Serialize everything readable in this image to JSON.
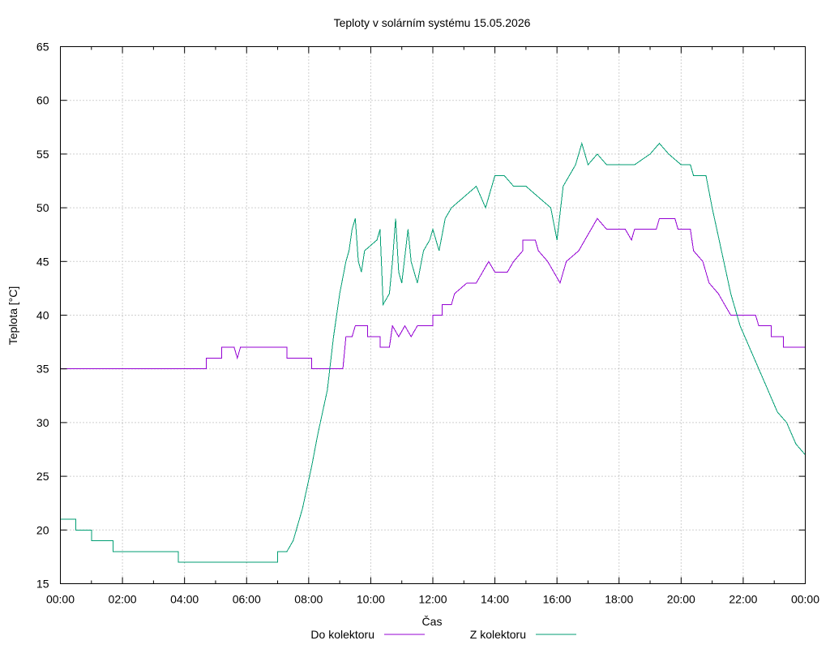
{
  "chart_data": {
    "type": "line",
    "title": "Teploty v solárním systému 15.05.2026",
    "xlabel": "Čas",
    "ylabel": "Teplota [°C]",
    "xlim": [
      0,
      24
    ],
    "ylim": [
      15,
      65
    ],
    "x_ticks": [
      "00:00",
      "02:00",
      "04:00",
      "06:00",
      "08:00",
      "10:00",
      "12:00",
      "14:00",
      "16:00",
      "18:00",
      "20:00",
      "22:00",
      "00:00"
    ],
    "y_ticks": [
      15,
      20,
      25,
      30,
      35,
      40,
      45,
      50,
      55,
      60,
      65
    ],
    "grid": true,
    "legend_position": "bottom",
    "series": [
      {
        "name": "Do kolektoru",
        "color": "#9400d3",
        "points": [
          [
            0,
            35
          ],
          [
            4.7,
            35
          ],
          [
            4.7,
            36
          ],
          [
            5.2,
            36
          ],
          [
            5.2,
            37
          ],
          [
            5.6,
            37
          ],
          [
            5.7,
            36
          ],
          [
            5.8,
            37
          ],
          [
            7.3,
            37
          ],
          [
            7.3,
            36
          ],
          [
            8.1,
            36
          ],
          [
            8.1,
            35
          ],
          [
            9.1,
            35
          ],
          [
            9.2,
            38
          ],
          [
            9.4,
            38
          ],
          [
            9.5,
            39
          ],
          [
            9.9,
            39
          ],
          [
            9.9,
            38
          ],
          [
            10.3,
            38
          ],
          [
            10.3,
            37
          ],
          [
            10.6,
            37
          ],
          [
            10.7,
            39
          ],
          [
            10.9,
            38
          ],
          [
            11.1,
            39
          ],
          [
            11.3,
            38
          ],
          [
            11.5,
            39
          ],
          [
            12.0,
            39
          ],
          [
            12.0,
            40
          ],
          [
            12.3,
            40
          ],
          [
            12.3,
            41
          ],
          [
            12.6,
            41
          ],
          [
            12.7,
            42
          ],
          [
            13.1,
            43
          ],
          [
            13.4,
            43
          ],
          [
            13.6,
            44
          ],
          [
            13.8,
            45
          ],
          [
            14.0,
            44
          ],
          [
            14.4,
            44
          ],
          [
            14.6,
            45
          ],
          [
            14.9,
            46
          ],
          [
            14.9,
            47
          ],
          [
            15.3,
            47
          ],
          [
            15.4,
            46
          ],
          [
            15.7,
            45
          ],
          [
            15.9,
            44
          ],
          [
            16.1,
            43
          ],
          [
            16.2,
            44
          ],
          [
            16.3,
            45
          ],
          [
            16.7,
            46
          ],
          [
            16.9,
            47
          ],
          [
            17.1,
            48
          ],
          [
            17.3,
            49
          ],
          [
            17.6,
            48
          ],
          [
            18.2,
            48
          ],
          [
            18.4,
            47
          ],
          [
            18.5,
            48
          ],
          [
            19.2,
            48
          ],
          [
            19.3,
            49
          ],
          [
            19.8,
            49
          ],
          [
            19.9,
            48
          ],
          [
            20.3,
            48
          ],
          [
            20.4,
            46
          ],
          [
            20.7,
            45
          ],
          [
            20.9,
            43
          ],
          [
            21.2,
            42
          ],
          [
            21.4,
            41
          ],
          [
            21.6,
            40
          ],
          [
            22.4,
            40
          ],
          [
            22.5,
            39
          ],
          [
            22.9,
            39
          ],
          [
            22.9,
            38
          ],
          [
            23.3,
            38
          ],
          [
            23.3,
            37
          ],
          [
            24,
            37
          ]
        ]
      },
      {
        "name": "Z kolektoru",
        "color": "#009e73",
        "points": [
          [
            0,
            21
          ],
          [
            0.5,
            21
          ],
          [
            0.5,
            20
          ],
          [
            1.0,
            20
          ],
          [
            1.0,
            19
          ],
          [
            1.7,
            19
          ],
          [
            1.7,
            18
          ],
          [
            3.8,
            18
          ],
          [
            3.8,
            17
          ],
          [
            7.0,
            17
          ],
          [
            7.0,
            18
          ],
          [
            7.3,
            18
          ],
          [
            7.5,
            19
          ],
          [
            7.8,
            22
          ],
          [
            8.1,
            26
          ],
          [
            8.3,
            29
          ],
          [
            8.6,
            33
          ],
          [
            8.8,
            38
          ],
          [
            9.0,
            42
          ],
          [
            9.2,
            45
          ],
          [
            9.3,
            46
          ],
          [
            9.4,
            48
          ],
          [
            9.5,
            49
          ],
          [
            9.6,
            45
          ],
          [
            9.7,
            44
          ],
          [
            9.8,
            46
          ],
          [
            10.2,
            47
          ],
          [
            10.3,
            48
          ],
          [
            10.4,
            41
          ],
          [
            10.6,
            42
          ],
          [
            10.7,
            45
          ],
          [
            10.8,
            49
          ],
          [
            10.9,
            44
          ],
          [
            11.0,
            43
          ],
          [
            11.2,
            48
          ],
          [
            11.3,
            45
          ],
          [
            11.5,
            43
          ],
          [
            11.7,
            46
          ],
          [
            11.9,
            47
          ],
          [
            12.0,
            48
          ],
          [
            12.2,
            46
          ],
          [
            12.4,
            49
          ],
          [
            12.6,
            50
          ],
          [
            13.0,
            51
          ],
          [
            13.4,
            52
          ],
          [
            13.7,
            50
          ],
          [
            14.0,
            53
          ],
          [
            14.3,
            53
          ],
          [
            14.6,
            52
          ],
          [
            15.0,
            52
          ],
          [
            15.4,
            51
          ],
          [
            15.8,
            50
          ],
          [
            16.0,
            47
          ],
          [
            16.2,
            52
          ],
          [
            16.6,
            54
          ],
          [
            16.8,
            56
          ],
          [
            17.0,
            54
          ],
          [
            17.3,
            55
          ],
          [
            17.6,
            54
          ],
          [
            18.0,
            54
          ],
          [
            18.5,
            54
          ],
          [
            19.0,
            55
          ],
          [
            19.3,
            56
          ],
          [
            19.6,
            55
          ],
          [
            20.0,
            54
          ],
          [
            20.3,
            54
          ],
          [
            20.4,
            53
          ],
          [
            20.8,
            53
          ],
          [
            21.0,
            50
          ],
          [
            21.3,
            46
          ],
          [
            21.6,
            42
          ],
          [
            21.9,
            39
          ],
          [
            22.2,
            37
          ],
          [
            22.5,
            35
          ],
          [
            22.8,
            33
          ],
          [
            23.1,
            31
          ],
          [
            23.4,
            30
          ],
          [
            23.7,
            28
          ],
          [
            24,
            27
          ]
        ]
      }
    ]
  }
}
